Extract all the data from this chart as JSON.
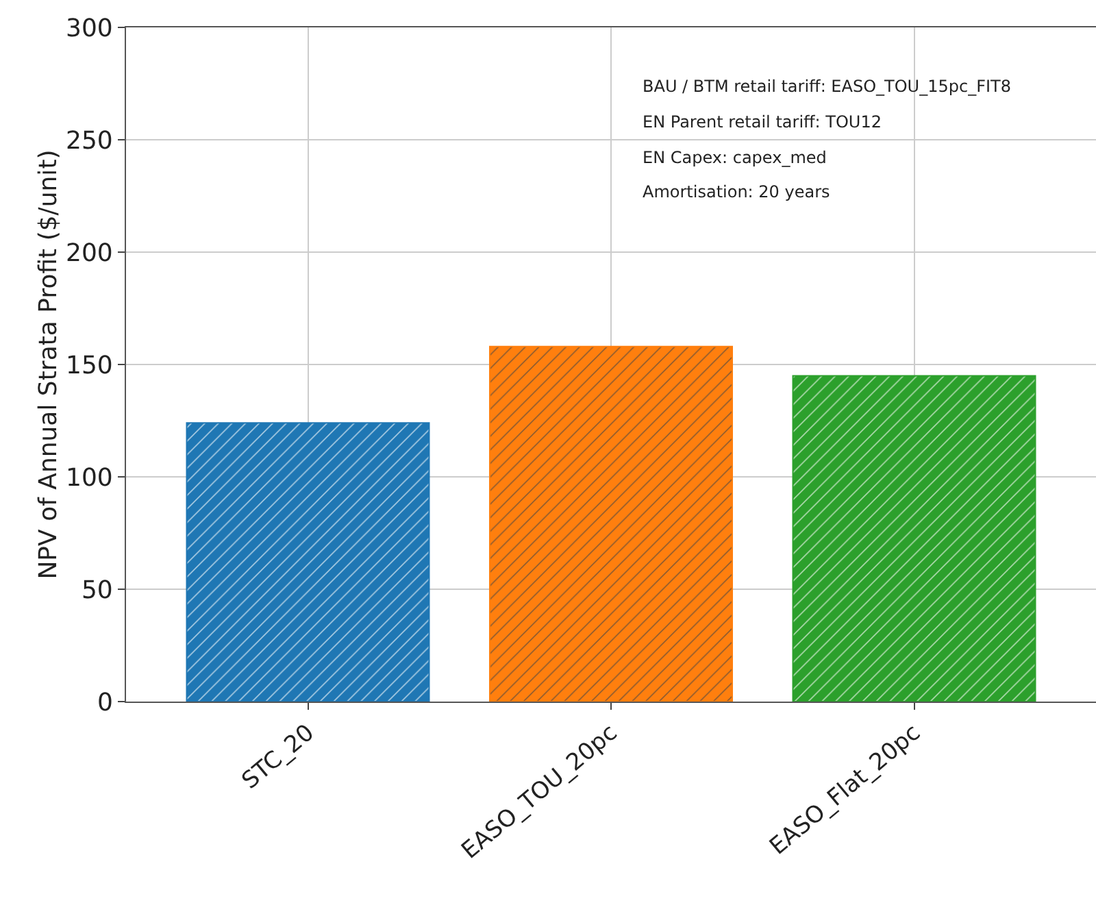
{
  "chart_data": {
    "type": "bar",
    "ylabel": "NPV of Annual Strata Profit ($/unit)",
    "categories": [
      "STC_20",
      "EASO_TOU_20pc",
      "EASO_Flat_20pc"
    ],
    "values": [
      124,
      158,
      145
    ],
    "colors": [
      "#1f77b4",
      "#ff7f0e",
      "#2ca02c"
    ],
    "ylim": [
      0,
      300
    ],
    "yticks": [
      0,
      50,
      100,
      150,
      200,
      250,
      300
    ],
    "grid": true,
    "annotations": [
      "BAU / BTM retail tariff: EASO_TOU_15pc_FIT8",
      "EN Parent retail tariff: TOU12",
      "EN Capex: capex_med",
      "Amortisation: 20 years"
    ]
  }
}
